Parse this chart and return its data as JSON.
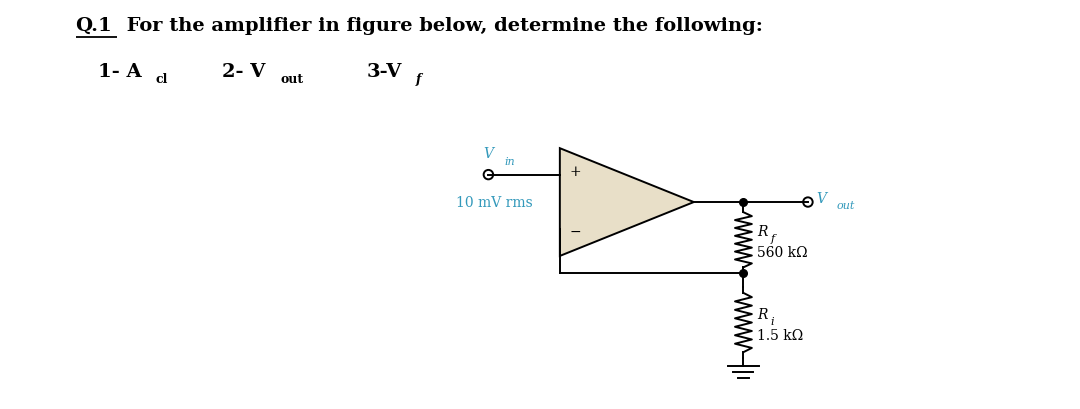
{
  "title_q": "Q.1",
  "title_rest": " For the amplifier in figure below, determine the following:",
  "item1": "1- A",
  "item1_sub": "cl",
  "item2": "2- V",
  "item2_sub": "out",
  "item3": "3-V",
  "item3_sub": "f",
  "vin_label": "V",
  "vin_sub": "in",
  "vin_value": "10 mV rms",
  "vout_label": "V",
  "vout_sub": "out",
  "rf_label": "R",
  "rf_sub": "f",
  "rf_value": "560 kΩ",
  "ri_label": "R",
  "ri_sub": "i",
  "ri_value": "1.5 kΩ",
  "op_amp_fill": "#e8dfc8",
  "line_color": "#000000",
  "cyan_color": "#3399bb",
  "figsize": [
    10.8,
    4.09
  ],
  "dpi": 100,
  "font_size_title": 14,
  "font_size_items": 14,
  "font_size_sub": 9,
  "font_size_circuit": 10,
  "font_size_circuit_sub": 8
}
